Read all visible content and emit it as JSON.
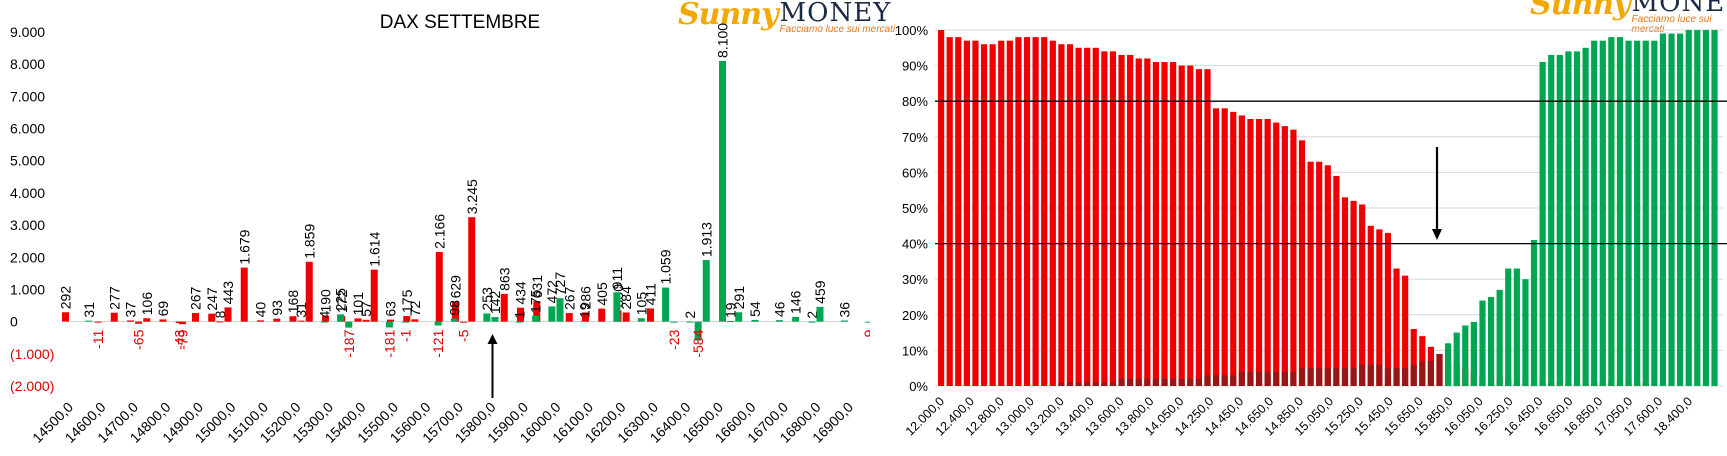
{
  "logo": {
    "sunny": "Sunny",
    "money": "MONEY",
    "tagline": "Facciamo luce sui mercati"
  },
  "colors": {
    "red": "#ee0000",
    "green": "#00a651",
    "neg_label": "#e00000",
    "dark_red": "#8b1a1a"
  },
  "chart_data": [
    {
      "type": "bar",
      "title": "DAX SETTEMBRE",
      "ylim": [
        -2000,
        9000
      ],
      "y_ticks": [
        {
          "v": 9000,
          "label": "9.000"
        },
        {
          "v": 8000,
          "label": "8.000"
        },
        {
          "v": 7000,
          "label": "7.000"
        },
        {
          "v": 6000,
          "label": "6.000"
        },
        {
          "v": 5000,
          "label": "5.000"
        },
        {
          "v": 4000,
          "label": "4.000"
        },
        {
          "v": 3000,
          "label": "3.000"
        },
        {
          "v": 2000,
          "label": "2.000"
        },
        {
          "v": 1000,
          "label": "1.000"
        },
        {
          "v": 0,
          "label": "0"
        },
        {
          "v": -1000,
          "label": "(1.000)"
        },
        {
          "v": -2000,
          "label": "(2.000)"
        }
      ],
      "x_labels": [
        "14500,0",
        "14600,0",
        "14700,0",
        "14800,0",
        "14900,0",
        "15000,0",
        "15100,0",
        "15200,0",
        "15300,0",
        "15400,0",
        "15500,0",
        "15600,0",
        "15700,0",
        "15800,0",
        "15900,0",
        "16000,0",
        "16100,0",
        "16200,0",
        "16300,0",
        "16400,0",
        "16500,0",
        "16600,0",
        "16700,0",
        "16800,0",
        "16900,0"
      ],
      "grid": false,
      "arrow_at_strike": "15800,0",
      "series": [
        {
          "color": "red",
          "points": [
            {
              "x": 14500,
              "y": 292,
              "label": "292"
            },
            {
              "x": 14650,
              "y": 277,
              "label": "277"
            },
            {
              "x": 14700,
              "y": 37,
              "label": "37"
            },
            {
              "x": 14750,
              "y": 106,
              "label": "106"
            },
            {
              "x": 14800,
              "y": 69,
              "label": "69"
            },
            {
              "x": 14900,
              "y": 267,
              "label": "267"
            },
            {
              "x": 14950,
              "y": 247,
              "label": "247"
            },
            {
              "x": 14975,
              "y": 8,
              "label": "8"
            },
            {
              "x": 15000,
              "y": 443,
              "label": "443"
            },
            {
              "x": 15050,
              "y": 1679,
              "label": "1.679"
            },
            {
              "x": 15100,
              "y": 40,
              "label": "40"
            },
            {
              "x": 15150,
              "y": 93,
              "label": "93"
            },
            {
              "x": 15200,
              "y": 168,
              "label": "168"
            },
            {
              "x": 15225,
              "y": 31,
              "label": "31"
            },
            {
              "x": 15250,
              "y": 1859,
              "label": "1.859"
            },
            {
              "x": 15300,
              "y": 190,
              "label": "190"
            },
            {
              "x": 15350,
              "y": 172,
              "label": "172"
            },
            {
              "x": 15400,
              "y": 101,
              "label": "101"
            },
            {
              "x": 15425,
              "y": 57,
              "label": "57"
            },
            {
              "x": 15450,
              "y": 1614,
              "label": "1.614"
            },
            {
              "x": 15500,
              "y": 63,
              "label": "63"
            },
            {
              "x": 15550,
              "y": 175,
              "label": "175"
            },
            {
              "x": 15575,
              "y": 72,
              "label": "72"
            },
            {
              "x": 15650,
              "y": 2166,
              "label": "2.166"
            },
            {
              "x": 15700,
              "y": 629,
              "label": "629"
            },
            {
              "x": 15750,
              "y": 3245,
              "label": "3.245"
            },
            {
              "x": 15850,
              "y": 863,
              "label": "863"
            },
            {
              "x": 15900,
              "y": 434,
              "label": "434"
            },
            {
              "x": 15950,
              "y": 631,
              "label": "631"
            },
            {
              "x": 16050,
              "y": 267,
              "label": "267"
            },
            {
              "x": 16100,
              "y": 286,
              "label": "286"
            },
            {
              "x": 16150,
              "y": 405,
              "label": "405"
            },
            {
              "x": 16200,
              "y": 350,
              "label": "350"
            },
            {
              "x": 16225,
              "y": 284,
              "label": "284"
            },
            {
              "x": 16300,
              "y": 411,
              "label": "411"
            },
            {
              "x": 14600,
              "y": -11,
              "label": "-11"
            },
            {
              "x": 14725,
              "y": -65,
              "label": "-65"
            },
            {
              "x": 14850,
              "y": -43,
              "label": "-43"
            },
            {
              "x": 14860,
              "y": -79,
              "label": "-79"
            },
            {
              "x": 15725,
              "y": -5,
              "label": "-5"
            }
          ]
        },
        {
          "color": "green",
          "points": [
            {
              "x": 14550,
              "y": 31,
              "label": "31"
            },
            {
              "x": 15275,
              "y": 4,
              "label": "4"
            },
            {
              "x": 15325,
              "y": 225,
              "label": "225"
            },
            {
              "x": 15675,
              "y": 98,
              "label": "98"
            },
            {
              "x": 15775,
              "y": 253,
              "label": "253"
            },
            {
              "x": 15800,
              "y": 142,
              "label": "142"
            },
            {
              "x": 15875,
              "y": 1,
              "label": "1"
            },
            {
              "x": 15925,
              "y": 175,
              "label": "175"
            },
            {
              "x": 15975,
              "y": 472,
              "label": "472"
            },
            {
              "x": 16000,
              "y": 727,
              "label": "727"
            },
            {
              "x": 16075,
              "y": 19,
              "label": "19"
            },
            {
              "x": 16175,
              "y": 911,
              "label": "911"
            },
            {
              "x": 16250,
              "y": 105,
              "label": "105"
            },
            {
              "x": 16325,
              "y": 1059,
              "label": "1.059"
            },
            {
              "x": 16400,
              "y": 2,
              "label": "2"
            },
            {
              "x": 16450,
              "y": 1913,
              "label": "1.913"
            },
            {
              "x": 16500,
              "y": 8100,
              "label": "8.100"
            },
            {
              "x": 16525,
              "y": 19,
              "label": "19"
            },
            {
              "x": 16550,
              "y": 291,
              "label": "291"
            },
            {
              "x": 16600,
              "y": 54,
              "label": "54"
            },
            {
              "x": 16675,
              "y": 46,
              "label": "46"
            },
            {
              "x": 16725,
              "y": 146,
              "label": "146"
            },
            {
              "x": 16775,
              "y": 2,
              "label": "2"
            },
            {
              "x": 16800,
              "y": 459,
              "label": "459"
            },
            {
              "x": 16875,
              "y": 36,
              "label": "36"
            },
            {
              "x": 15350,
              "y": -187,
              "label": "-187"
            },
            {
              "x": 15475,
              "y": -181,
              "label": "-181"
            },
            {
              "x": 15525,
              "y": -1,
              "label": "-1"
            },
            {
              "x": 15625,
              "y": -121,
              "label": "-121"
            },
            {
              "x": 16350,
              "y": -23,
              "label": "-23"
            },
            {
              "x": 16425,
              "y": -584,
              "label": "-584"
            },
            {
              "x": 16950,
              "y": -9,
              "label": "-9"
            }
          ]
        }
      ]
    },
    {
      "type": "bar",
      "ylim": [
        0,
        100
      ],
      "y_ticks": [
        {
          "v": 100,
          "label": "100%"
        },
        {
          "v": 90,
          "label": "90%"
        },
        {
          "v": 80,
          "label": "80%"
        },
        {
          "v": 70,
          "label": "70%"
        },
        {
          "v": 60,
          "label": "60%"
        },
        {
          "v": 50,
          "label": "50%"
        },
        {
          "v": 40,
          "label": "40%"
        },
        {
          "v": 30,
          "label": "30%"
        },
        {
          "v": 20,
          "label": "20%"
        },
        {
          "v": 10,
          "label": "10%"
        },
        {
          "v": 0,
          "label": "0%"
        }
      ],
      "x_labels": [
        "12.000,0",
        "12.400,0",
        "12.800,0",
        "13.000,0",
        "13.200,0",
        "13.400,0",
        "13.600,0",
        "13.800,0",
        "14.050,0",
        "14.250,0",
        "14.450,0",
        "14.650,0",
        "14.850,0",
        "15.050,0",
        "15.250,0",
        "15.450,0",
        "15.650,0",
        "15.850,0",
        "16.050,0",
        "16.250,0",
        "16.450,0",
        "16.650,0",
        "16.850,0",
        "17.050,0",
        "17.600,0",
        "18.400,0"
      ],
      "grid": true,
      "reference_lines": [
        80,
        40
      ],
      "red_values": [
        100,
        98,
        98,
        97,
        97,
        96,
        96,
        97,
        97,
        98,
        98,
        98,
        98,
        97,
        96,
        96,
        95,
        95,
        95,
        94,
        94,
        93,
        93,
        92,
        92,
        91,
        91,
        91,
        90,
        90,
        89,
        89,
        78,
        78,
        77,
        76,
        75,
        75,
        75,
        74,
        73,
        72,
        69,
        63,
        63,
        62,
        59,
        53,
        52,
        51,
        45,
        44,
        43,
        33,
        31,
        16,
        14,
        11,
        9,
        7,
        6,
        5,
        4,
        3,
        3,
        2,
        2,
        1,
        1,
        1,
        1,
        1,
        1,
        1,
        1,
        1,
        1,
        1,
        1,
        1,
        1,
        1,
        1,
        0,
        0,
        0,
        0,
        0,
        0,
        0,
        0
      ],
      "green_values": [
        0,
        0,
        0,
        0,
        0,
        0,
        0,
        0,
        0,
        0,
        0,
        0,
        0,
        0,
        1,
        1,
        1,
        1,
        1,
        1,
        1,
        2,
        2,
        2,
        2,
        2,
        2,
        2,
        2,
        2,
        2,
        3,
        3,
        3,
        3,
        4,
        4,
        4,
        4,
        4,
        4,
        4,
        5,
        5,
        5,
        5,
        5,
        5,
        5,
        6,
        6,
        6,
        5,
        5,
        5,
        6,
        7,
        7,
        9,
        12,
        15,
        17,
        18,
        24,
        25,
        27,
        33,
        33,
        30,
        41,
        91,
        93,
        93,
        94,
        94,
        95,
        97,
        97,
        98,
        98,
        97,
        97,
        97,
        97,
        99,
        99,
        99,
        100,
        100,
        100,
        100
      ],
      "arrow_at_strike": "15.650,0"
    }
  ]
}
